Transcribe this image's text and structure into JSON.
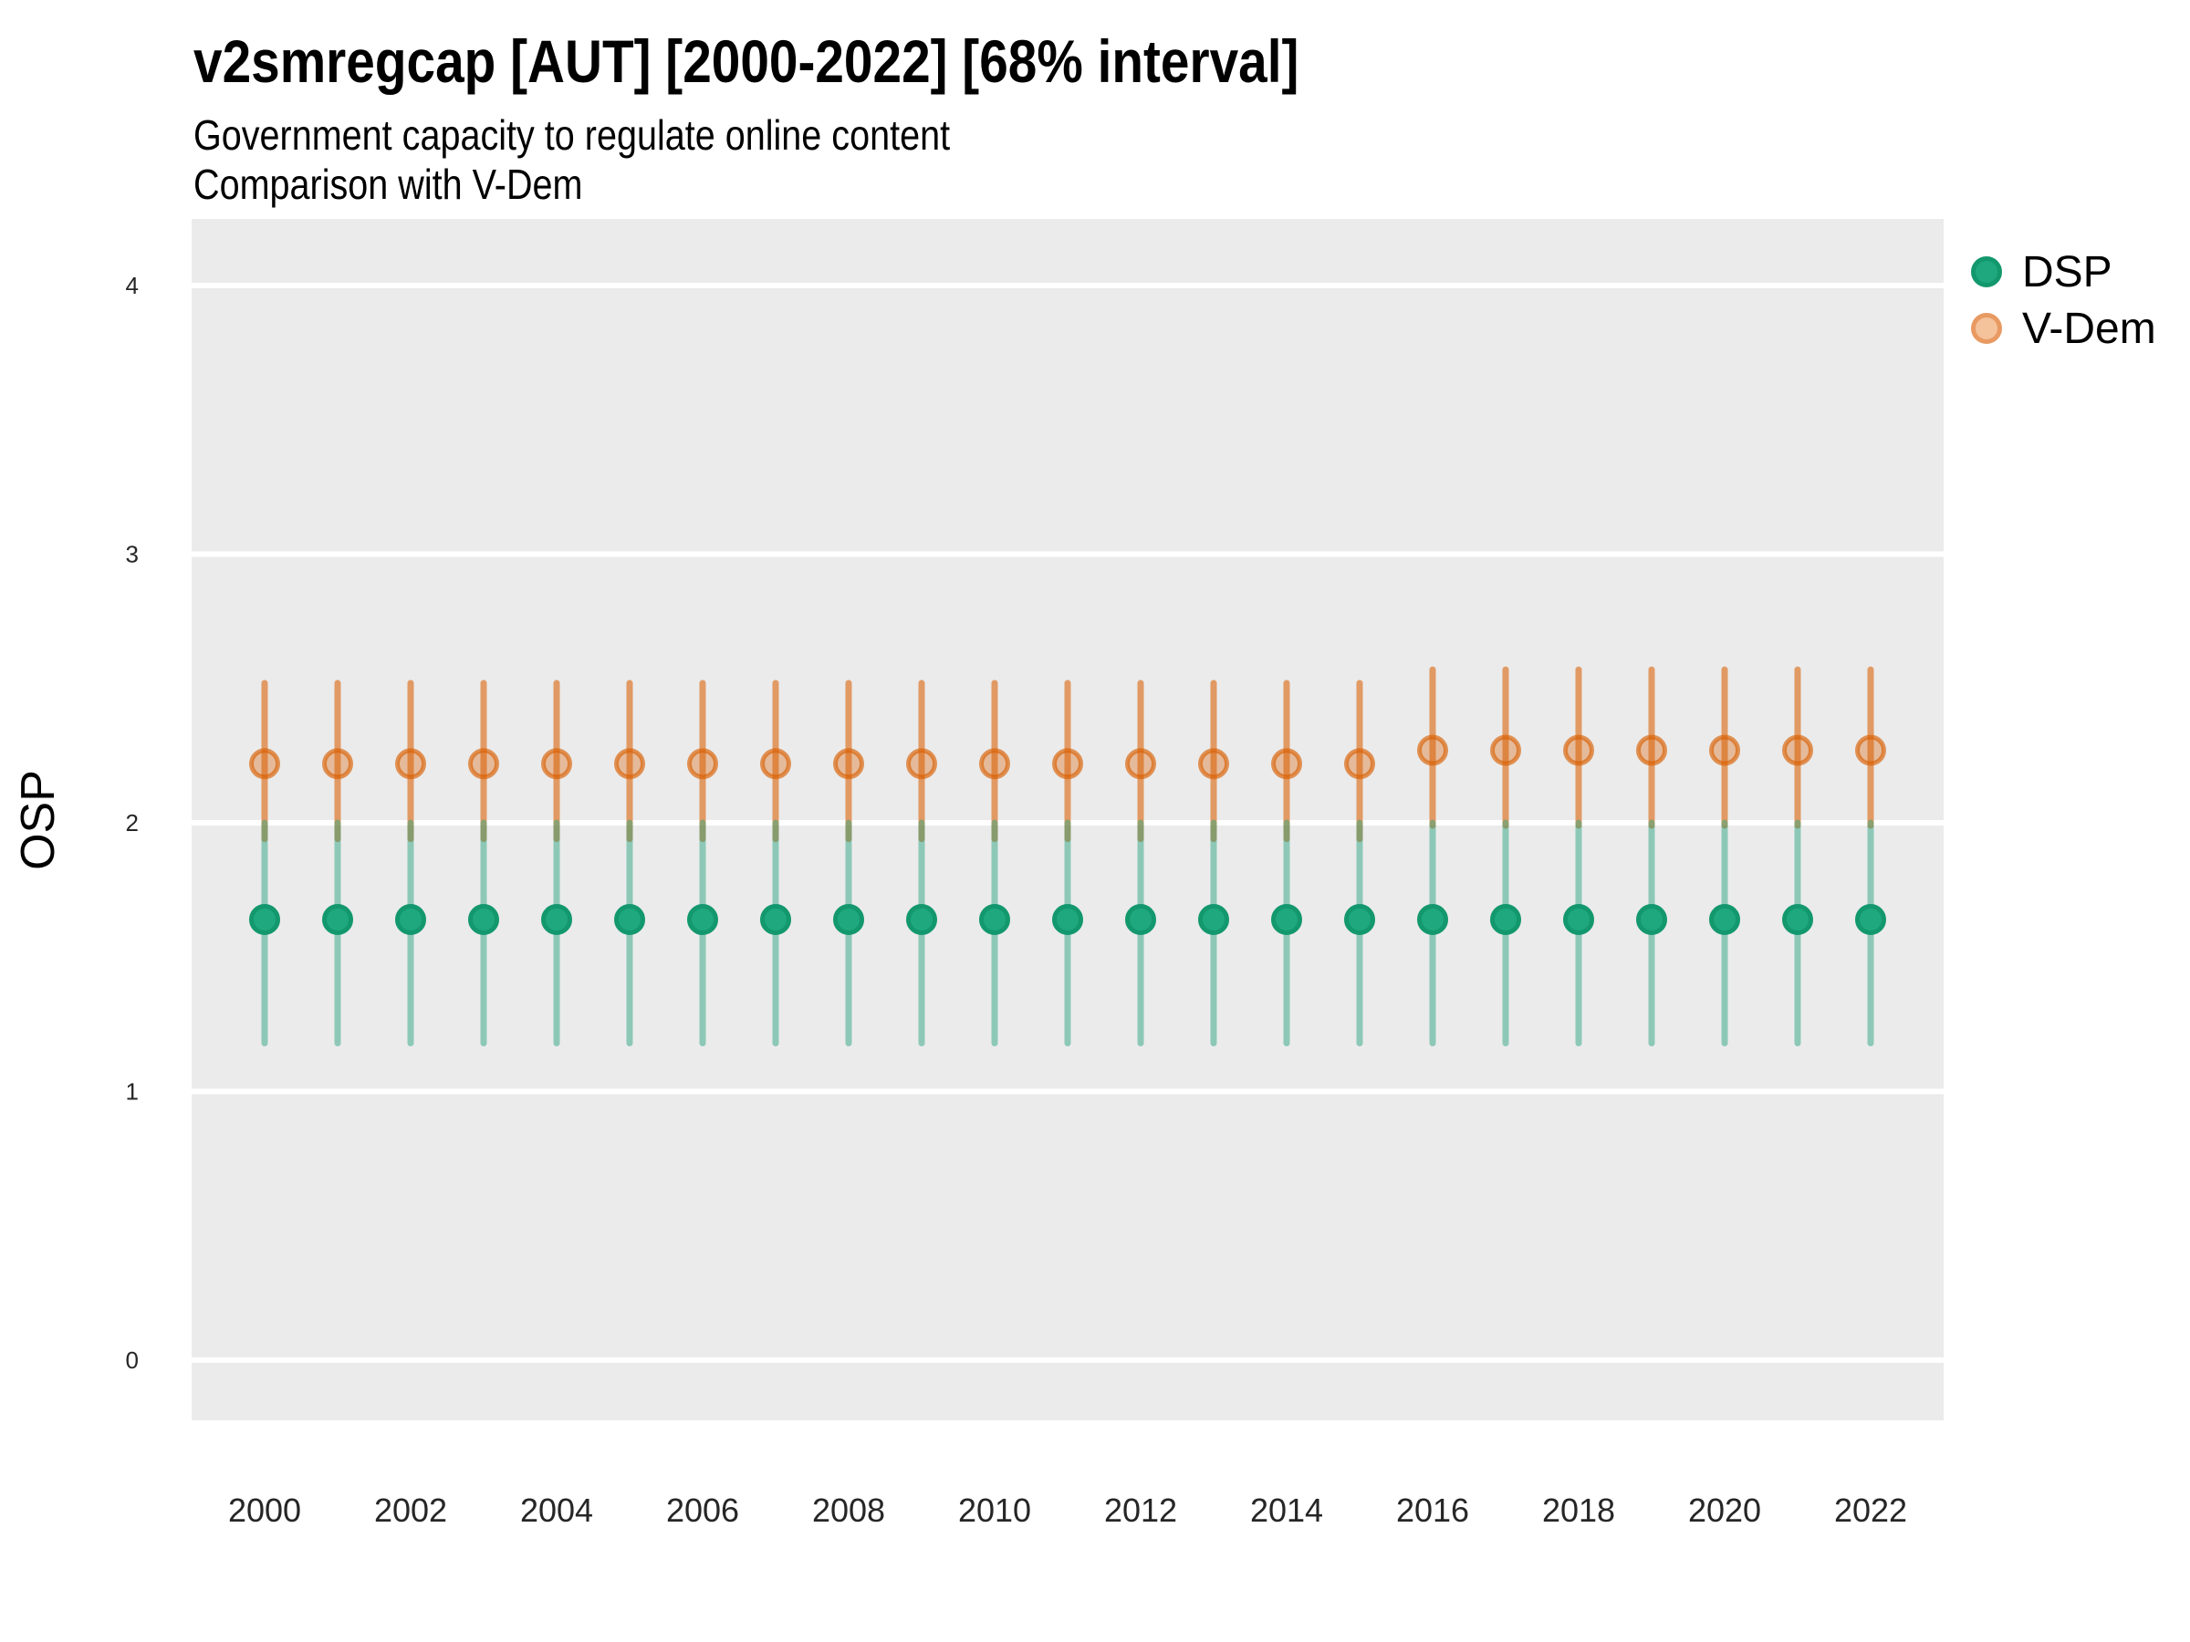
{
  "title": "v2smregcap [AUT] [2000-2022] [68% interval]",
  "subtitle": "Government capacity to regulate online content",
  "subtitle2": "Comparison with V-Dem",
  "legend": {
    "position": "right",
    "items": [
      {
        "label": "DSP",
        "color": "#1B9E77"
      },
      {
        "label": "V-Dem",
        "color": "#D95F02"
      }
    ]
  },
  "y_axis": {
    "label": "OSP",
    "ticks": [
      4,
      3,
      2,
      1,
      0
    ]
  },
  "x_axis": {
    "ticks": [
      2000,
      2002,
      2004,
      2006,
      2008,
      2010,
      2012,
      2014,
      2016,
      2018,
      2020,
      2022
    ]
  },
  "colors": {
    "panel_background": "#EBEBEB",
    "gridline": "#FFFFFF",
    "tick_text": "#262626",
    "dsp_bar": "rgba(27,158,119,0.45)",
    "dsp_point_fill": "#1FA87D",
    "dsp_point_stroke": "#13986D",
    "vdem_bar": "rgba(217,95,2,0.58)",
    "vdem_point_fill": "rgba(217,95,2,0.35)",
    "vdem_point_stroke": "rgba(217,95,2,0.65)",
    "legend_dsp_fill": "#1FA87D",
    "legend_dsp_stroke": "#13986D",
    "legend_vdem_fill": "#F4C29B",
    "legend_vdem_stroke": "#E89A62"
  },
  "chart_data": {
    "type": "scatter",
    "title": "v2smregcap [AUT] [2000-2022] [68% interval]",
    "xlabel": "",
    "ylabel": "OSP",
    "ylim": [
      -0.22,
      4.25
    ],
    "interval": "68%",
    "grid": "horizontal-major-only",
    "legend_position": "right",
    "x": [
      2000,
      2001,
      2002,
      2003,
      2004,
      2005,
      2006,
      2007,
      2008,
      2009,
      2010,
      2011,
      2012,
      2013,
      2014,
      2015,
      2016,
      2017,
      2018,
      2019,
      2020,
      2021,
      2022
    ],
    "series": [
      {
        "name": "DSP",
        "color": "#1B9E77",
        "estimates": [
          1.64,
          1.64,
          1.64,
          1.64,
          1.64,
          1.64,
          1.64,
          1.64,
          1.64,
          1.64,
          1.64,
          1.64,
          1.64,
          1.64,
          1.64,
          1.64,
          1.64,
          1.64,
          1.64,
          1.64,
          1.64,
          1.64,
          1.64
        ],
        "lower": [
          1.18,
          1.18,
          1.18,
          1.18,
          1.18,
          1.18,
          1.18,
          1.18,
          1.18,
          1.18,
          1.18,
          1.18,
          1.18,
          1.18,
          1.18,
          1.18,
          1.18,
          1.18,
          1.18,
          1.18,
          1.18,
          1.18,
          1.18
        ],
        "upper": [
          2.0,
          2.0,
          2.0,
          2.0,
          2.0,
          2.0,
          2.0,
          2.0,
          2.0,
          2.0,
          2.0,
          2.0,
          2.0,
          2.0,
          2.0,
          2.0,
          2.0,
          2.0,
          2.0,
          2.0,
          2.0,
          2.0,
          2.0
        ]
      },
      {
        "name": "V-Dem",
        "color": "#D95F02",
        "estimates": [
          2.22,
          2.22,
          2.22,
          2.22,
          2.22,
          2.22,
          2.22,
          2.22,
          2.22,
          2.22,
          2.22,
          2.22,
          2.22,
          2.22,
          2.22,
          2.22,
          2.27,
          2.27,
          2.27,
          2.27,
          2.27,
          2.27,
          2.27
        ],
        "lower": [
          1.94,
          1.94,
          1.94,
          1.94,
          1.94,
          1.94,
          1.94,
          1.94,
          1.94,
          1.94,
          1.94,
          1.94,
          1.94,
          1.94,
          1.94,
          1.94,
          1.99,
          1.99,
          1.99,
          1.99,
          1.99,
          1.99,
          1.99
        ],
        "upper": [
          2.52,
          2.52,
          2.52,
          2.52,
          2.52,
          2.52,
          2.52,
          2.52,
          2.52,
          2.52,
          2.52,
          2.52,
          2.52,
          2.52,
          2.52,
          2.52,
          2.57,
          2.57,
          2.57,
          2.57,
          2.57,
          2.57,
          2.57
        ]
      }
    ]
  }
}
